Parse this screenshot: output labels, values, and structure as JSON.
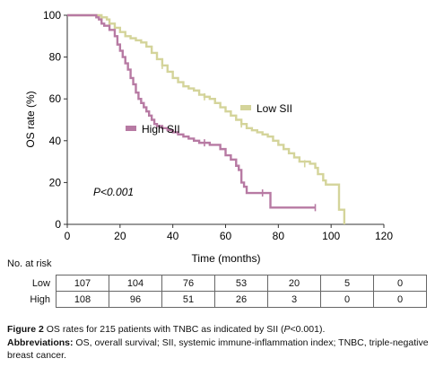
{
  "chart_data": {
    "type": "line",
    "subtype": "kaplan-meier step",
    "xlabel": "Time (months)",
    "ylabel": "OS rate (%)",
    "xlim": [
      0,
      120
    ],
    "ylim": [
      0,
      100
    ],
    "xticks": [
      "0",
      "20",
      "40",
      "60",
      "80",
      "100",
      "120"
    ],
    "yticks": [
      "0",
      "20",
      "40",
      "60",
      "80",
      "100"
    ],
    "annotation": "P<0.001",
    "legend_placement": "inline",
    "series": [
      {
        "name": "Low SII",
        "color": "#d4d49a",
        "points": [
          [
            0,
            100
          ],
          [
            12,
            100
          ],
          [
            13,
            99
          ],
          [
            15,
            98
          ],
          [
            16,
            96
          ],
          [
            18,
            94
          ],
          [
            20,
            92
          ],
          [
            22,
            90
          ],
          [
            24,
            89
          ],
          [
            26,
            88
          ],
          [
            28,
            87
          ],
          [
            30,
            85
          ],
          [
            32,
            82
          ],
          [
            34,
            79
          ],
          [
            36,
            76
          ],
          [
            38,
            73
          ],
          [
            40,
            70
          ],
          [
            42,
            68
          ],
          [
            44,
            66
          ],
          [
            46,
            65
          ],
          [
            48,
            64
          ],
          [
            50,
            62
          ],
          [
            52,
            61
          ],
          [
            54,
            60
          ],
          [
            56,
            58
          ],
          [
            58,
            56
          ],
          [
            60,
            54
          ],
          [
            62,
            52
          ],
          [
            64,
            50
          ],
          [
            66,
            48
          ],
          [
            68,
            46
          ],
          [
            70,
            45
          ],
          [
            72,
            44
          ],
          [
            74,
            43
          ],
          [
            76,
            42
          ],
          [
            78,
            40
          ],
          [
            80,
            38
          ],
          [
            82,
            36
          ],
          [
            84,
            34
          ],
          [
            86,
            32
          ],
          [
            88,
            30
          ],
          [
            92,
            29
          ],
          [
            94,
            27
          ],
          [
            95,
            24
          ],
          [
            97,
            21
          ],
          [
            98,
            19
          ],
          [
            100,
            19
          ],
          [
            103,
            19
          ],
          [
            103,
            7
          ],
          [
            105,
            7
          ],
          [
            105,
            0
          ]
        ],
        "censor_marks": [
          [
            36,
            76
          ],
          [
            52,
            61
          ],
          [
            66,
            48
          ],
          [
            90,
            29
          ]
        ]
      },
      {
        "name": "High SII",
        "color": "#b77aa3",
        "points": [
          [
            0,
            100
          ],
          [
            10,
            100
          ],
          [
            11,
            99
          ],
          [
            12,
            98
          ],
          [
            13,
            96
          ],
          [
            14,
            95
          ],
          [
            16,
            93
          ],
          [
            18,
            90
          ],
          [
            19,
            86
          ],
          [
            20,
            83
          ],
          [
            21,
            80
          ],
          [
            22,
            77
          ],
          [
            23,
            74
          ],
          [
            24,
            70
          ],
          [
            25,
            67
          ],
          [
            26,
            63
          ],
          [
            27,
            60
          ],
          [
            28,
            58
          ],
          [
            29,
            56
          ],
          [
            30,
            54
          ],
          [
            31,
            52
          ],
          [
            32,
            50
          ],
          [
            33,
            48
          ],
          [
            34,
            47
          ],
          [
            36,
            46
          ],
          [
            38,
            45
          ],
          [
            40,
            44
          ],
          [
            42,
            43
          ],
          [
            44,
            42
          ],
          [
            46,
            41
          ],
          [
            48,
            40
          ],
          [
            50,
            39
          ],
          [
            52,
            39
          ],
          [
            54,
            38
          ],
          [
            56,
            38
          ],
          [
            58,
            36
          ],
          [
            60,
            33
          ],
          [
            62,
            31
          ],
          [
            64,
            28
          ],
          [
            65,
            26
          ],
          [
            66,
            23
          ],
          [
            66,
            20
          ],
          [
            67,
            18
          ],
          [
            68,
            15
          ],
          [
            70,
            15
          ],
          [
            72,
            15
          ],
          [
            76,
            15
          ],
          [
            77,
            8
          ],
          [
            80,
            8
          ],
          [
            85,
            8
          ],
          [
            90,
            8
          ],
          [
            94,
            8
          ]
        ],
        "censor_marks": [
          [
            52,
            39
          ],
          [
            74,
            15
          ],
          [
            94,
            8
          ]
        ]
      }
    ]
  },
  "risk_table": {
    "title": "No. at risk",
    "rows": [
      {
        "label": "Low",
        "values": [
          "107",
          "104",
          "76",
          "53",
          "20",
          "5",
          "0"
        ]
      },
      {
        "label": "High",
        "values": [
          "108",
          "96",
          "51",
          "26",
          "3",
          "0",
          "0"
        ]
      }
    ]
  },
  "caption": {
    "figure_label": "Figure 2",
    "figure_text": " OS rates for 215 patients with TNBC as indicated by SII (",
    "p_value": "P",
    "p_rest": "<0.001).",
    "abbr_label": "Abbreviations:",
    "abbr_text": " OS, overall survival; SII, systemic immune-inflammation index; TNBC, triple-negative breast cancer."
  }
}
